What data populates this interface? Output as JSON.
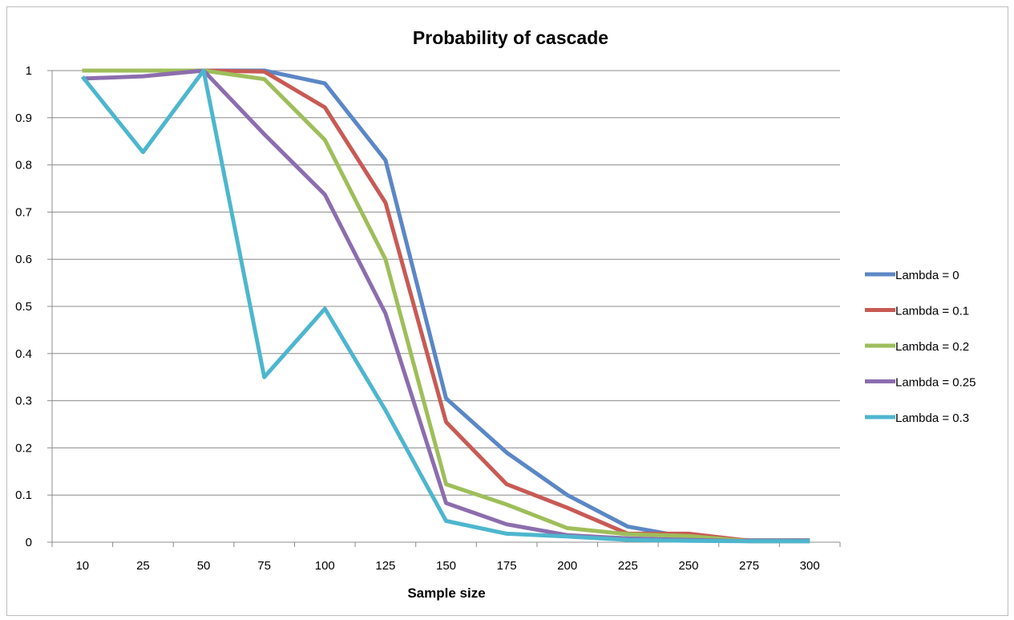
{
  "chart_data": {
    "type": "line",
    "title": "Probability of cascade",
    "xlabel": "Sample size",
    "ylabel": "",
    "categories": [
      "10",
      "25",
      "50",
      "75",
      "100",
      "125",
      "150",
      "175",
      "200",
      "225",
      "250",
      "275",
      "300"
    ],
    "ylim": [
      0,
      1
    ],
    "yticks": [
      "0",
      "0.1",
      "0.2",
      "0.3",
      "0.4",
      "0.5",
      "0.6",
      "0.7",
      "0.8",
      "0.9",
      "1"
    ],
    "grid": true,
    "legend_position": "right",
    "series": [
      {
        "name": "Lambda = 0",
        "color": "#5B87C6",
        "values": [
          1,
          1,
          1,
          1,
          0.973,
          0.81,
          0.305,
          0.19,
          0.1,
          0.033,
          0.01,
          0.004,
          0.004
        ]
      },
      {
        "name": "Lambda = 0.1",
        "color": "#C85A54",
        "values": [
          1,
          1,
          1,
          0.998,
          0.922,
          0.72,
          0.255,
          0.123,
          0.073,
          0.018,
          0.018,
          0.003,
          0.003
        ]
      },
      {
        "name": "Lambda = 0.2",
        "color": "#9EBE5A",
        "values": [
          1,
          1,
          1,
          0.982,
          0.853,
          0.6,
          0.123,
          0.08,
          0.03,
          0.017,
          0.013,
          0.002,
          0.002
        ]
      },
      {
        "name": "Lambda = 0.25",
        "color": "#8C6DAE",
        "values": [
          0.983,
          0.988,
          1,
          0.865,
          0.737,
          0.485,
          0.083,
          0.038,
          0.015,
          0.008,
          0.005,
          0.002,
          0.002
        ]
      },
      {
        "name": "Lambda = 0.3",
        "color": "#4DB6CE",
        "values": [
          0.987,
          0.827,
          1,
          0.35,
          0.495,
          0.28,
          0.045,
          0.018,
          0.012,
          0.005,
          0.003,
          0.002,
          0.002
        ]
      }
    ]
  }
}
